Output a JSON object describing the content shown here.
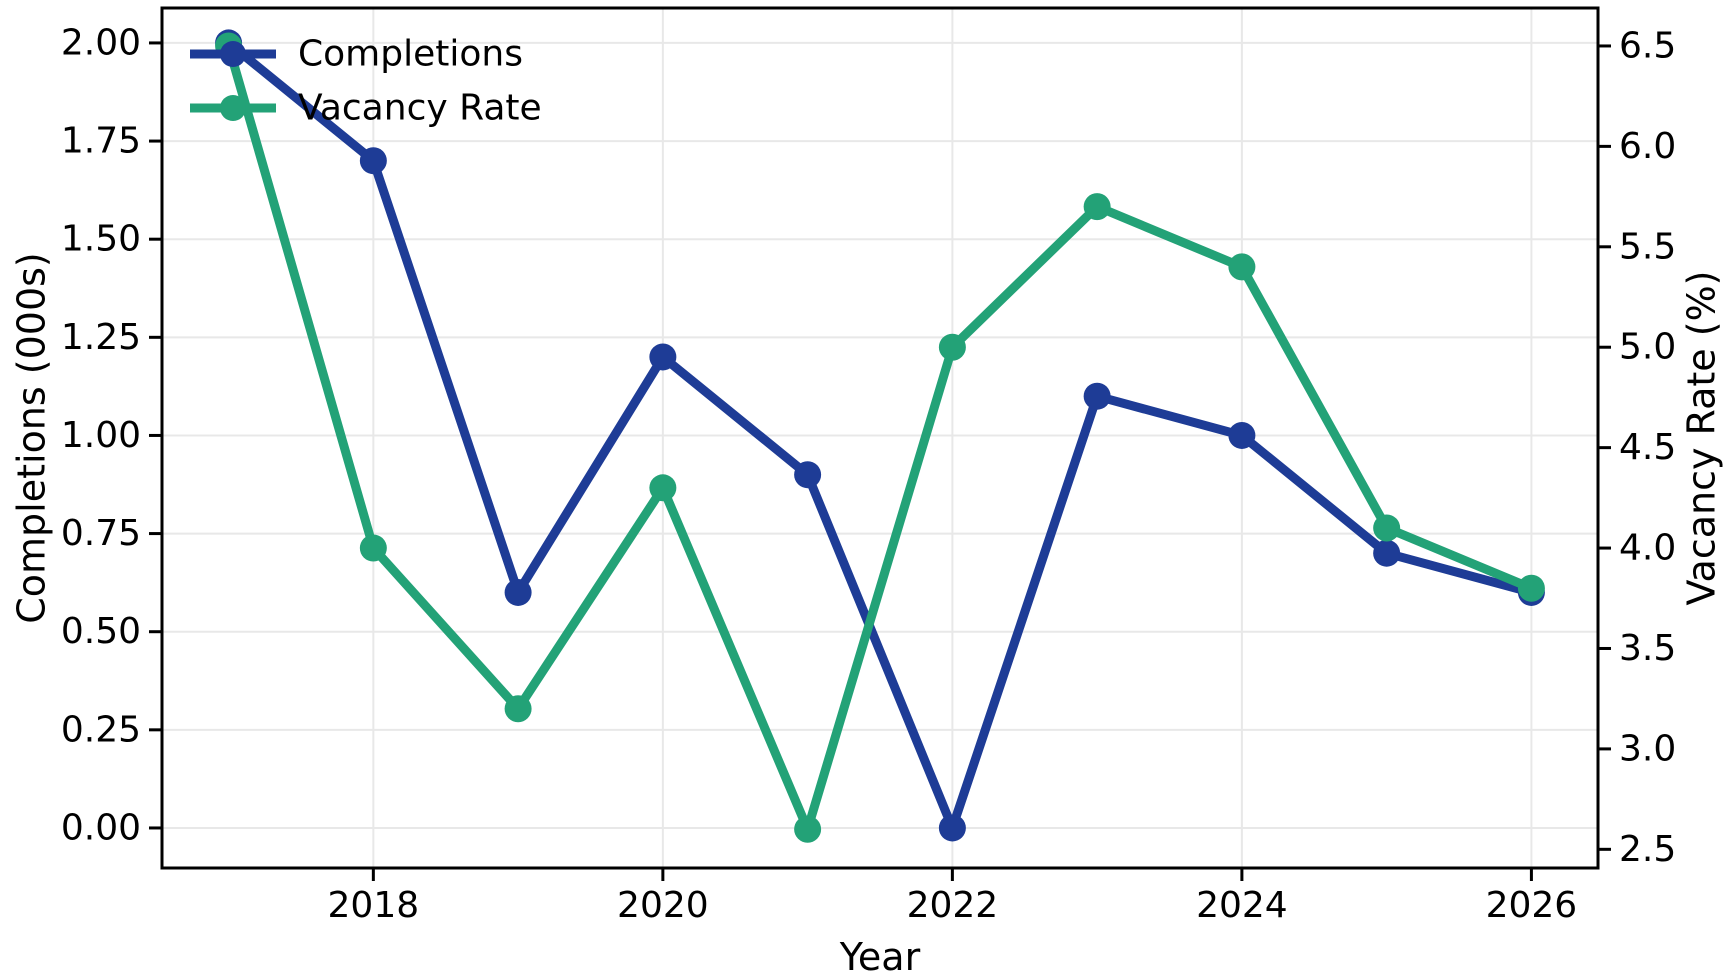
{
  "chart_data": {
    "type": "line",
    "title": "",
    "xlabel": "Year",
    "grid": true,
    "grid_color": "#e8e8e8",
    "background": "#ffffff",
    "spine_color": "#000000",
    "legend_position": "upper left",
    "x": [
      2017,
      2018,
      2019,
      2020,
      2021,
      2022,
      2023,
      2024,
      2025,
      2026
    ],
    "x_ticks": [
      2018,
      2020,
      2022,
      2024,
      2026
    ],
    "x_tick_labels": [
      "2018",
      "2020",
      "2022",
      "2024",
      "2026"
    ],
    "xlim": [
      2016.54,
      2026.46
    ],
    "left_axis": {
      "label": "Completions (000s)",
      "ticks": [
        0.0,
        0.25,
        0.5,
        0.75,
        1.0,
        1.25,
        1.5,
        1.75,
        2.0
      ],
      "tick_labels": [
        "0.00",
        "0.25",
        "0.50",
        "0.75",
        "1.00",
        "1.25",
        "1.50",
        "1.75",
        "2.00"
      ],
      "lim": [
        -0.102,
        2.089
      ]
    },
    "right_axis": {
      "label": "Vacancy Rate (%)",
      "ticks": [
        2.5,
        3.0,
        3.5,
        4.0,
        4.5,
        5.0,
        5.5,
        6.0,
        6.5
      ],
      "tick_labels": [
        "2.5",
        "3.0",
        "3.5",
        "4.0",
        "4.5",
        "5.0",
        "5.5",
        "6.0",
        "6.5"
      ],
      "lim": [
        2.407,
        6.689
      ]
    },
    "series": [
      {
        "name": "Completions",
        "axis": "left",
        "color": "#1e3c96",
        "marker": "circle",
        "values": [
          2.0,
          1.7,
          0.6,
          1.2,
          0.9,
          0.0,
          1.1,
          1.0,
          0.7,
          0.6
        ]
      },
      {
        "name": "Vacancy Rate",
        "axis": "right",
        "color": "#23a277",
        "marker": "circle",
        "values": [
          6.5,
          4.0,
          3.2,
          4.3,
          2.6,
          5.0,
          5.7,
          5.4,
          4.1,
          3.8
        ]
      }
    ]
  }
}
